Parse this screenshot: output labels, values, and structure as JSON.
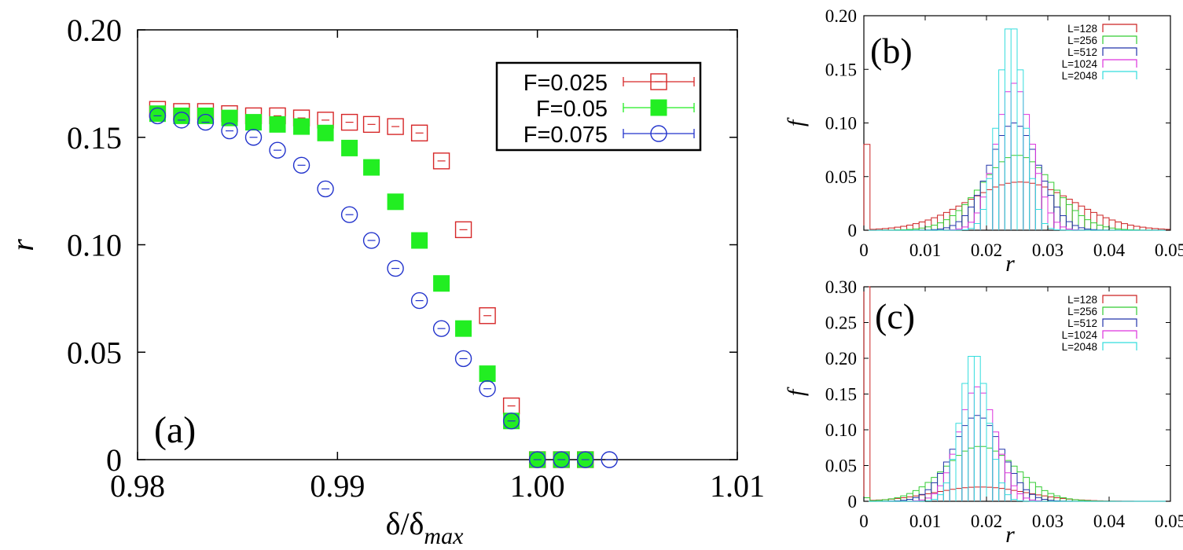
{
  "chart_data": [
    {
      "panel": "a",
      "type": "scatter",
      "panel_label": "(a)",
      "xlabel": "δ/δ",
      "xlabel_sub": "max",
      "ylabel": "r",
      "xlim": [
        0.98,
        1.01
      ],
      "ylim": [
        0,
        0.2
      ],
      "xticks": [
        0.98,
        0.99,
        1.0,
        1.01
      ],
      "xtick_labels": [
        "0.98",
        "0.99",
        "1.00",
        "1.01"
      ],
      "yticks": [
        0,
        0.05,
        0.1,
        0.15,
        0.2
      ],
      "ytick_labels": [
        "0",
        "0.05",
        "0.10",
        "0.15",
        "0.20"
      ],
      "legend_position": "top-right",
      "series": [
        {
          "name": "F=0.025",
          "marker": "open-square",
          "color": "#d62728",
          "x": [
            0.981,
            0.9822,
            0.9834,
            0.9846,
            0.9858,
            0.987,
            0.9882,
            0.9894,
            0.9906,
            0.9917,
            0.9929,
            0.9941,
            0.9952,
            0.9963,
            0.9975,
            0.9987,
            1.0,
            1.0012,
            1.0024
          ],
          "y": [
            0.163,
            0.162,
            0.162,
            0.161,
            0.16,
            0.16,
            0.159,
            0.158,
            0.157,
            0.156,
            0.155,
            0.152,
            0.139,
            0.107,
            0.067,
            0.025,
            0,
            0,
            0
          ]
        },
        {
          "name": "F=0.05",
          "marker": "filled-square",
          "color": "#22ee22",
          "x": [
            0.981,
            0.9822,
            0.9834,
            0.9846,
            0.9858,
            0.987,
            0.9882,
            0.9894,
            0.9906,
            0.9917,
            0.9929,
            0.9941,
            0.9952,
            0.9963,
            0.9975,
            0.9987,
            1.0,
            1.0012,
            1.0024
          ],
          "y": [
            0.161,
            0.16,
            0.16,
            0.159,
            0.157,
            0.156,
            0.155,
            0.152,
            0.145,
            0.136,
            0.12,
            0.102,
            0.082,
            0.061,
            0.04,
            0.018,
            0,
            0,
            0
          ]
        },
        {
          "name": "F=0.075",
          "marker": "open-circle",
          "color": "#2233cc",
          "x": [
            0.981,
            0.9822,
            0.9834,
            0.9846,
            0.9858,
            0.987,
            0.9882,
            0.9894,
            0.9906,
            0.9917,
            0.9929,
            0.9941,
            0.9952,
            0.9963,
            0.9975,
            0.9987,
            1.0,
            1.0012,
            1.0024,
            1.0036
          ],
          "y": [
            0.16,
            0.158,
            0.157,
            0.153,
            0.15,
            0.144,
            0.137,
            0.126,
            0.114,
            0.102,
            0.089,
            0.074,
            0.061,
            0.047,
            0.033,
            0.018,
            0,
            0,
            0,
            0
          ]
        }
      ]
    },
    {
      "panel": "b",
      "type": "histogram",
      "panel_label": "(b)",
      "xlabel": "r",
      "ylabel": "f",
      "xlim": [
        0,
        0.05
      ],
      "ylim": [
        0,
        0.2
      ],
      "xticks": [
        0,
        0.01,
        0.02,
        0.03,
        0.04,
        0.05
      ],
      "xtick_labels": [
        "0",
        "0.01",
        "0.02",
        "0.03",
        "0.04",
        "0.05"
      ],
      "yticks": [
        0,
        0.05,
        0.1,
        0.15,
        0.2
      ],
      "ytick_labels": [
        "0",
        "0.05",
        "0.10",
        "0.15",
        "0.20"
      ],
      "bin_width": 0.001,
      "legend_position": "top-right",
      "series": [
        {
          "name": "L=128",
          "color": "#cc2222",
          "zero_bin": 0.08,
          "mean": 0.0255,
          "sigma": 0.0085,
          "peak": 0.045
        },
        {
          "name": "L=256",
          "color": "#33cc33",
          "zero_bin": 0.0,
          "mean": 0.025,
          "sigma": 0.0058,
          "peak": 0.07
        },
        {
          "name": "L=512",
          "color": "#2233aa",
          "zero_bin": 0.0,
          "mean": 0.0245,
          "sigma": 0.004,
          "peak": 0.1
        },
        {
          "name": "L=1024",
          "color": "#dd33dd",
          "zero_bin": 0.0,
          "mean": 0.0245,
          "sigma": 0.0029,
          "peak": 0.137
        },
        {
          "name": "L=2048",
          "color": "#33dddd",
          "zero_bin": 0.0,
          "mean": 0.024,
          "sigma": 0.0021,
          "peak": 0.193
        }
      ]
    },
    {
      "panel": "c",
      "type": "histogram",
      "panel_label": "(c)",
      "xlabel": "r",
      "ylabel": "f",
      "xlim": [
        0,
        0.05
      ],
      "ylim": [
        0,
        0.3
      ],
      "xticks": [
        0,
        0.01,
        0.02,
        0.03,
        0.04,
        0.05
      ],
      "xtick_labels": [
        "0",
        "0.01",
        "0.02",
        "0.03",
        "0.04",
        "0.05"
      ],
      "yticks": [
        0,
        0.05,
        0.1,
        0.15,
        0.2,
        0.25,
        0.3
      ],
      "ytick_labels": [
        "0",
        "0.05",
        "0.10",
        "0.15",
        "0.20",
        "0.25",
        "0.30"
      ],
      "bin_width": 0.001,
      "legend_position": "top-right",
      "series": [
        {
          "name": "L=128",
          "color": "#cc2222",
          "zero_bin": 0.3,
          "mean": 0.019,
          "sigma": 0.0075,
          "peak": 0.02
        },
        {
          "name": "L=256",
          "color": "#33cc33",
          "zero_bin": 0.005,
          "mean": 0.019,
          "sigma": 0.0058,
          "peak": 0.077
        },
        {
          "name": "L=512",
          "color": "#2233aa",
          "zero_bin": 0.0,
          "mean": 0.0185,
          "sigma": 0.004,
          "peak": 0.12
        },
        {
          "name": "L=1024",
          "color": "#dd33dd",
          "zero_bin": 0.0,
          "mean": 0.0185,
          "sigma": 0.003,
          "peak": 0.16
        },
        {
          "name": "L=2048",
          "color": "#33dddd",
          "zero_bin": 0.0,
          "mean": 0.018,
          "sigma": 0.0022,
          "peak": 0.208
        }
      ]
    }
  ]
}
